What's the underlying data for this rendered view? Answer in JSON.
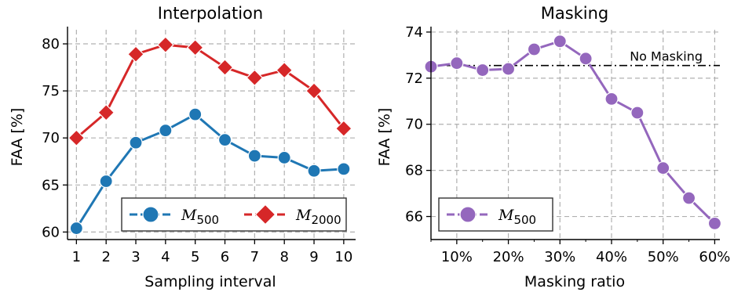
{
  "chart_data": [
    {
      "type": "line",
      "title": "Interpolation",
      "xlabel": "Sampling interval",
      "ylabel": "FAA [%]",
      "x": [
        1,
        2,
        3,
        4,
        5,
        6,
        7,
        8,
        9,
        10
      ],
      "xlim": [
        0.7,
        10.4
      ],
      "ylim": [
        59.2,
        81.5
      ],
      "xticks": [
        1,
        2,
        3,
        4,
        5,
        6,
        7,
        8,
        9,
        10
      ],
      "yticks": [
        60,
        65,
        70,
        75,
        80
      ],
      "grid": true,
      "legend_placement": "lower-right",
      "series": [
        {
          "name": "M500",
          "legend_base": "M",
          "legend_sub": "500",
          "color": "#1f77b4",
          "marker": "circle",
          "values": [
            60.4,
            65.4,
            69.5,
            70.8,
            72.5,
            69.8,
            68.1,
            67.9,
            66.5,
            66.7
          ]
        },
        {
          "name": "M2000",
          "legend_base": "M",
          "legend_sub": "2000",
          "color": "#d62728",
          "marker": "diamond",
          "values": [
            70.0,
            72.7,
            78.9,
            79.9,
            79.6,
            77.5,
            76.4,
            77.2,
            75.0,
            71.0
          ]
        }
      ]
    },
    {
      "type": "line",
      "title": "Masking",
      "xlabel": "Masking ratio",
      "ylabel": "FAA [%]",
      "x": [
        5,
        10,
        15,
        20,
        25,
        30,
        35,
        40,
        45,
        50,
        55,
        60
      ],
      "xlim": [
        5,
        61
      ],
      "ylim": [
        65.0,
        74.1
      ],
      "xticks": [
        10,
        20,
        30,
        40,
        50,
        60
      ],
      "xtick_labels": [
        "10%",
        "20%",
        "30%",
        "40%",
        "50%",
        "60%"
      ],
      "yticks": [
        66,
        68,
        70,
        72,
        74
      ],
      "grid": true,
      "legend_placement": "lower-left",
      "reference_line": {
        "value": 72.55,
        "label": "No Masking",
        "color": "#000000"
      },
      "series": [
        {
          "name": "M500",
          "legend_base": "M",
          "legend_sub": "500",
          "color": "#9467bd",
          "marker": "circle",
          "values": [
            72.5,
            72.65,
            72.35,
            72.4,
            73.25,
            73.6,
            72.85,
            71.1,
            70.5,
            68.1,
            66.8,
            65.7
          ]
        }
      ]
    }
  ]
}
